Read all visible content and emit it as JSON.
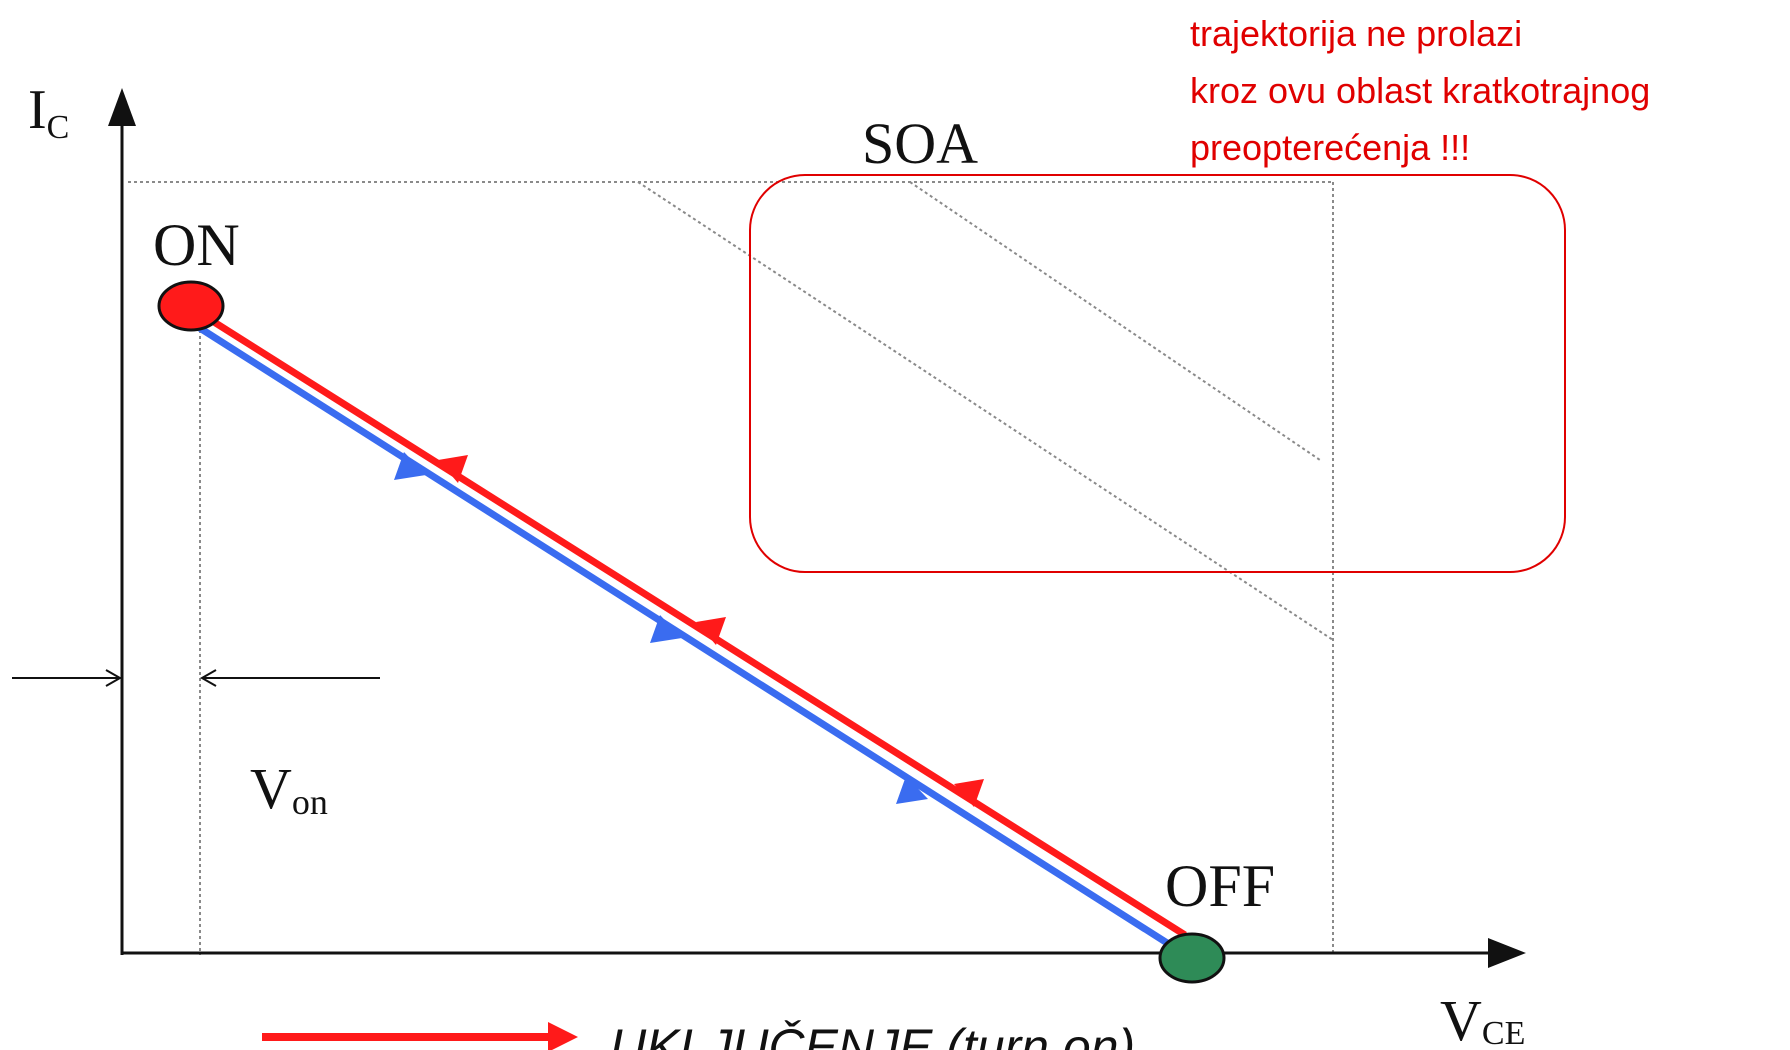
{
  "axes": {
    "y_label": "I",
    "y_sub": "C",
    "x_label": "V",
    "x_sub": "CE"
  },
  "points": {
    "on_label": "ON",
    "off_label": "OFF",
    "on_color": "#ff1a1a",
    "off_color": "#2e8b57"
  },
  "region": {
    "soa_label": "SOA"
  },
  "von": {
    "label": "V",
    "sub": "on"
  },
  "annotation": {
    "lines": [
      "trajektorija ne prolazi",
      "kroz ovu oblast kratkotrajnog",
      "preopterećenja !!!"
    ],
    "color": "#e00000"
  },
  "legend": {
    "turn_on_label": "UKLJUČENJE (turn on)",
    "turn_on_color": "#ff1a1a",
    "turn_off_color": "#3a6cf0"
  },
  "colors": {
    "axis": "#111111",
    "grid": "#888888",
    "turn_on": "#ff1a1a",
    "turn_off": "#3a6cf0"
  }
}
